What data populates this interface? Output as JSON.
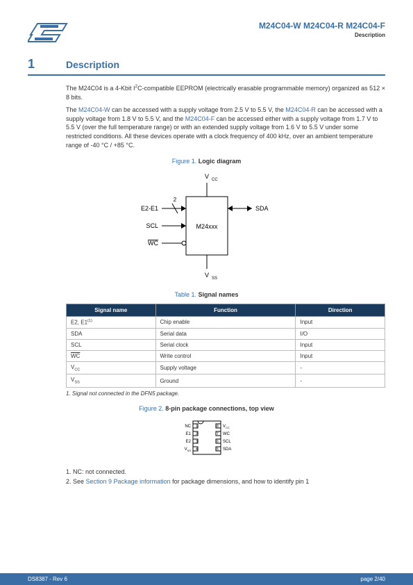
{
  "header": {
    "title": "M24C04-W M24C04-R M24C04-F",
    "subtitle": "Description"
  },
  "section": {
    "number": "1",
    "title": "Description"
  },
  "paragraphs": {
    "p1_a": "The M24C04 is a 4-Kbit I",
    "p1_b": "C-compatible EEPROM (electrically erasable programmable memory) organized as 512 × 8 bits.",
    "p2_a": "The ",
    "p2_link1": "M24C04-W",
    "p2_b": " can be accessed with a supply voltage from 2.5 V to 5.5 V, the ",
    "p2_link2": "M24C04-R",
    "p2_c": " can be accessed with a supply voltage from 1.8 V to 5.5 V, and the ",
    "p2_link3": "M24C04-F",
    "p2_d": " can be accessed either with a supply voltage from 1.7 V to 5.5 V (over the full temperature range) or with an extended supply voltage from 1.6 V to 5.5 V under some restricted conditions. All these devices operate with a clock frequency of 400 kHz, over an ambient temperature range of -40 °C / +85 °C."
  },
  "figure1": {
    "label": "Figure 1.",
    "title": "Logic diagram",
    "vcc": "VCC",
    "vss": "VSS",
    "e2e1": "E2-E1",
    "scl": "SCL",
    "wc": "WC",
    "sda": "SDA",
    "chip": "M24xxx",
    "two": "2"
  },
  "table1": {
    "label": "Table 1.",
    "title": "Signal names",
    "headers": {
      "name": "Signal name",
      "func": "Function",
      "dir": "Direction"
    },
    "rows": [
      {
        "name_html": "E2, E1<sup>(1)</sup>",
        "func": "Chip enable",
        "dir": "Input"
      },
      {
        "name_html": "SDA",
        "func": "Serial data",
        "dir": "I/O"
      },
      {
        "name_html": "SCL",
        "func": "Serial clock",
        "dir": "Input"
      },
      {
        "name_html": "<span class=\"overline\">WC</span>",
        "func": "Write control",
        "dir": "Input"
      },
      {
        "name_html": "V<sub>CC</sub>",
        "func": "Supply voltage",
        "dir": "-"
      },
      {
        "name_html": "V<sub>SS</sub>",
        "func": "Ground",
        "dir": "-"
      }
    ],
    "footnote": "1.   Signal not connected in the DFN5 package."
  },
  "figure2": {
    "label": "Figure 2.",
    "title": "8-pin package connections, top view",
    "pins_left": [
      "NC",
      "E1",
      "E2",
      "VSS"
    ],
    "pins_right": [
      "VCC",
      "WC",
      "SCL",
      "SDA"
    ],
    "nums_left": [
      "1",
      "2",
      "3",
      "4"
    ],
    "nums_right": [
      "8",
      "7",
      "6",
      "5"
    ]
  },
  "notes": {
    "n1": "1.    NC: not connected.",
    "n2_a": "2.    See ",
    "n2_link": "Section 9  Package information",
    "n2_b": " for package dimensions, and how to identify pin 1"
  },
  "footer": {
    "left": "DS8387 - Rev 6",
    "right": "page 2/40"
  },
  "colors": {
    "brand": "#3a6ea5",
    "header_bg": "#1a3a5c"
  }
}
